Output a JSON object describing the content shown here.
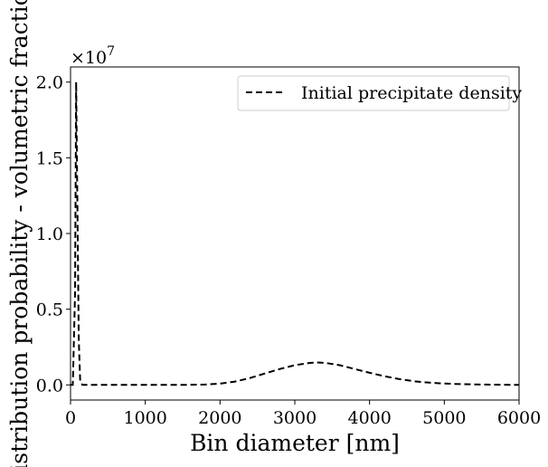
{
  "chart_data": {
    "type": "line",
    "title": "",
    "xlabel": "Bin diameter [nm]",
    "ylabel": "Distribution probability - volumetric fraction",
    "y_scale_label": "×10",
    "y_scale_exponent": "7",
    "xlim": [
      0,
      6000
    ],
    "ylim": [
      -0.1,
      2.1
    ],
    "grid": false,
    "legend_position": "top-right",
    "x_ticks": [
      {
        "value": 0,
        "label": "0"
      },
      {
        "value": 1000,
        "label": "1000"
      },
      {
        "value": 2000,
        "label": "2000"
      },
      {
        "value": 3000,
        "label": "3000"
      },
      {
        "value": 4000,
        "label": "4000"
      },
      {
        "value": 5000,
        "label": "5000"
      },
      {
        "value": 6000,
        "label": "6000"
      }
    ],
    "y_ticks": [
      {
        "value": 0.0,
        "label": "0.0"
      },
      {
        "value": 0.5,
        "label": "0.5"
      },
      {
        "value": 1.0,
        "label": "1.0"
      },
      {
        "value": 1.5,
        "label": "1.5"
      },
      {
        "value": 2.0,
        "label": "2.0"
      }
    ],
    "series": [
      {
        "name": "Initial precipitate density",
        "color": "#000000",
        "line_style": "dashed",
        "x": [
          0,
          30,
          60,
          75,
          90,
          110,
          130,
          160,
          500,
          1000,
          1500,
          1800,
          2000,
          2200,
          2400,
          2600,
          2800,
          3000,
          3200,
          3300,
          3400,
          3600,
          3800,
          4000,
          4200,
          4400,
          4600,
          4800,
          5000,
          5200,
          5500,
          6000
        ],
        "y": [
          0,
          0,
          0.6,
          2.0,
          1.3,
          0.3,
          0.02,
          0.0,
          0.0,
          0.0,
          0.0,
          0.002,
          0.008,
          0.022,
          0.045,
          0.075,
          0.105,
          0.13,
          0.145,
          0.148,
          0.146,
          0.13,
          0.105,
          0.08,
          0.057,
          0.038,
          0.024,
          0.015,
          0.009,
          0.005,
          0.002,
          0.0
        ]
      }
    ]
  }
}
